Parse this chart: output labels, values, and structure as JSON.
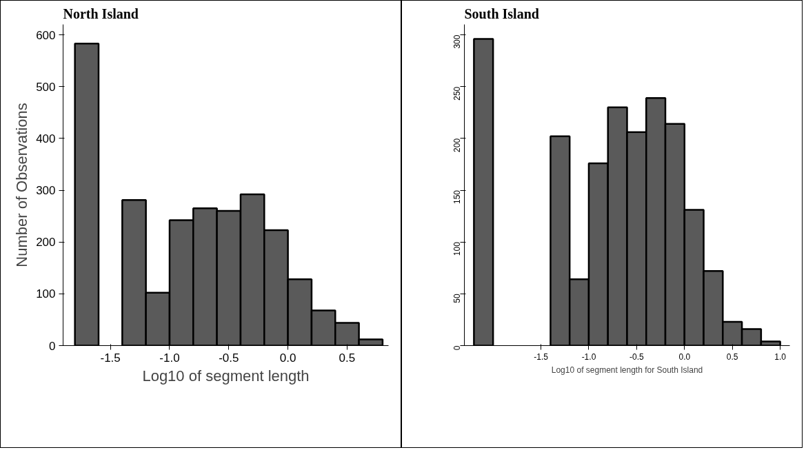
{
  "chart_data": [
    {
      "type": "histogram",
      "title": "North Island",
      "xlabel": "Log10 of segment length",
      "ylabel": "Number of Observations",
      "color": "#5a5a5a",
      "bins": [
        -1.8,
        -1.6,
        -1.4,
        -1.2,
        -1.0,
        -0.8,
        -0.6,
        -0.4,
        -0.2,
        0.0,
        0.2,
        0.4,
        0.6,
        0.8
      ],
      "values": [
        583,
        0,
        281,
        102,
        242,
        265,
        260,
        292,
        223,
        128,
        68,
        44,
        12
      ],
      "xlim": [
        -1.9,
        0.85
      ],
      "ylim": [
        0,
        620
      ],
      "xticks": [
        {
          "value": -1.5,
          "label": "-1.5"
        },
        {
          "value": -1.0,
          "label": "-1.0"
        },
        {
          "value": -0.5,
          "label": "-0.5"
        },
        {
          "value": 0.0,
          "label": "0.0"
        },
        {
          "value": 0.5,
          "label": "0.5"
        }
      ],
      "yticks": [
        0,
        100,
        200,
        300,
        400,
        500,
        600
      ],
      "grid": false
    },
    {
      "type": "histogram",
      "title": "South Island",
      "xlabel": "Log10 of segment length for South Island",
      "color": "#5a5a5a",
      "bins": [
        -2.2,
        -2.0,
        -1.8,
        -1.6,
        -1.4,
        -1.2,
        -1.0,
        -0.8,
        -0.6,
        -0.4,
        -0.2,
        0.0,
        0.2,
        0.4,
        0.6,
        0.8,
        1.0
      ],
      "values": [
        296,
        0,
        0,
        0,
        202,
        64,
        176,
        230,
        206,
        239,
        214,
        131,
        72,
        23,
        16,
        4
      ],
      "xlim": [
        -2.3,
        1.1
      ],
      "ylim": [
        0,
        310
      ],
      "xticks": [
        {
          "value": -1.5,
          "label": "-1.5"
        },
        {
          "value": -1.0,
          "label": "-1.0"
        },
        {
          "value": -0.5,
          "label": "-0.5"
        },
        {
          "value": 0.0,
          "label": "0.0"
        },
        {
          "value": 0.5,
          "label": "0.5"
        },
        {
          "value": 1.0,
          "label": "1.0"
        }
      ],
      "yticks": [
        0,
        50,
        100,
        150,
        200,
        250,
        300
      ],
      "grid": false
    }
  ]
}
